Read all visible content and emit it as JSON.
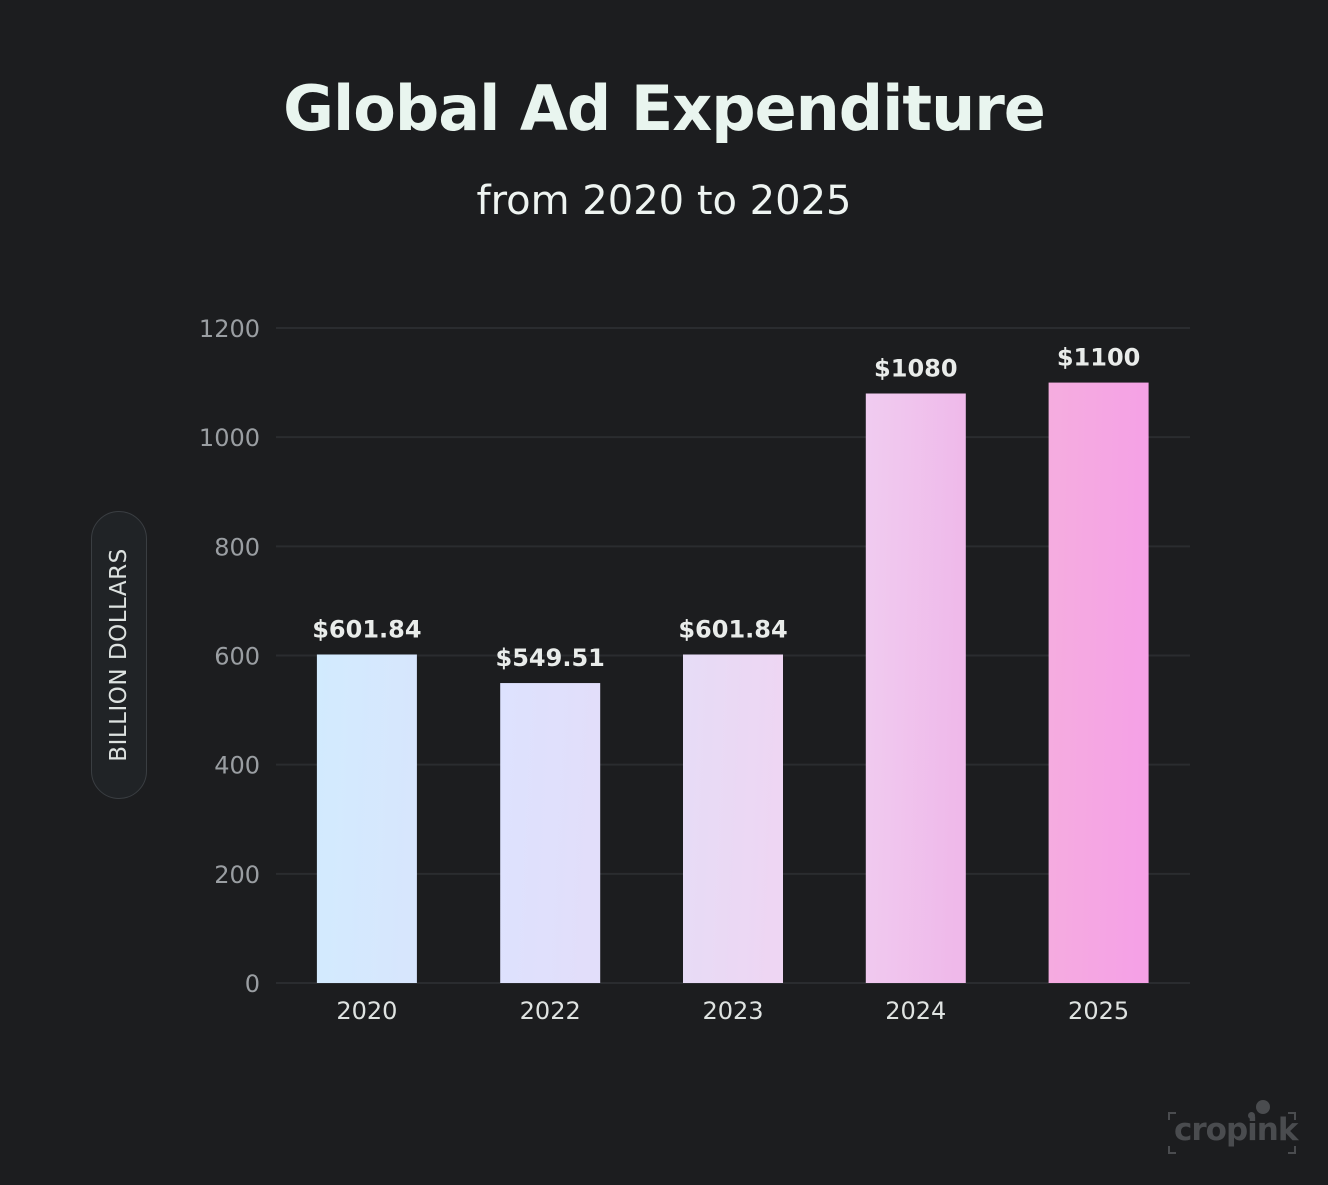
{
  "chart_data": {
    "type": "bar",
    "title": "Global Ad Expenditure",
    "subtitle": "from 2020 to 2025",
    "xlabel": "",
    "ylabel": "BILLION DOLLARS",
    "categories": [
      "2020",
      "2022",
      "2023",
      "2024",
      "2025"
    ],
    "values": [
      601.84,
      549.51,
      601.84,
      1080,
      1100
    ],
    "data_labels": [
      "$601.84",
      "$549.51",
      "$601.84",
      "$1080",
      "$1100"
    ],
    "ylim": [
      0,
      1200
    ],
    "yticks": [
      0,
      200,
      400,
      600,
      800,
      1000,
      1200
    ],
    "grid": true,
    "legend": "none",
    "bar_colors": [
      [
        "#d2ebfe",
        "#d7e6fd"
      ],
      [
        "#dde2fe",
        "#e2defa"
      ],
      [
        "#e6dcf6",
        "#eed6f3"
      ],
      [
        "#f0ccf0",
        "#efb9ea"
      ],
      [
        "#f5addf",
        "#f5a1e6"
      ]
    ]
  },
  "colors": {
    "background": "#1c1d1f",
    "grid": "#2a2c2f",
    "tick_text": "#9a9ea2",
    "label_text": "#e9ecea"
  },
  "watermark": {
    "text": "cropink"
  }
}
